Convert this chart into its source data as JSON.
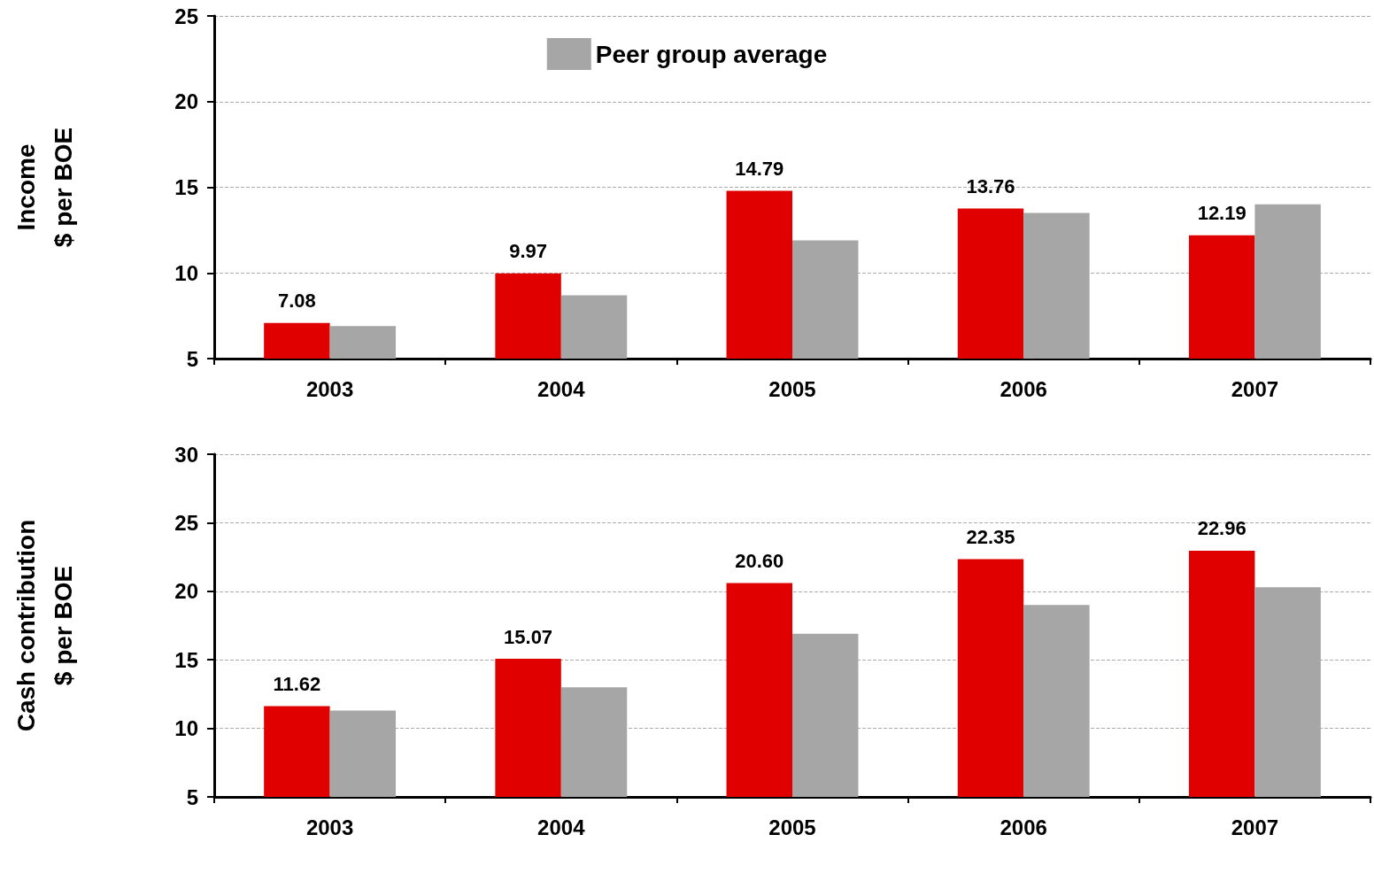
{
  "chart_data": [
    {
      "type": "bar",
      "ylabel": "Income\n$ per BOE",
      "categories": [
        "2003",
        "2004",
        "2005",
        "2006",
        "2007"
      ],
      "series": [
        {
          "color": "#e00000",
          "values": [
            7.08,
            9.97,
            14.79,
            13.76,
            12.19
          ],
          "value_labels": [
            "7.08",
            "9.97",
            "14.79",
            "13.76",
            "12.19"
          ]
        },
        {
          "name": "Peer group average",
          "color": "#a6a6a6",
          "values": [
            6.9,
            8.7,
            11.9,
            13.5,
            14.0
          ]
        }
      ],
      "ylim": [
        5,
        25
      ],
      "yticks": [
        5,
        10,
        15,
        20,
        25
      ],
      "grid": "y",
      "legend": "top"
    },
    {
      "type": "bar",
      "ylabel": "Cash contribution\n$ per BOE",
      "categories": [
        "2003",
        "2004",
        "2005",
        "2006",
        "2007"
      ],
      "series": [
        {
          "color": "#e00000",
          "values": [
            11.62,
            15.07,
            20.6,
            22.35,
            22.96
          ],
          "value_labels": [
            "11.62",
            "15.07",
            "20.60",
            "22.35",
            "22.96"
          ]
        },
        {
          "color": "#a6a6a6",
          "values": [
            11.3,
            13.0,
            16.9,
            19.0,
            20.3
          ]
        }
      ],
      "ylim": [
        5,
        30
      ],
      "yticks": [
        5,
        10,
        15,
        20,
        25,
        30
      ],
      "grid": "y",
      "legend": false
    }
  ]
}
